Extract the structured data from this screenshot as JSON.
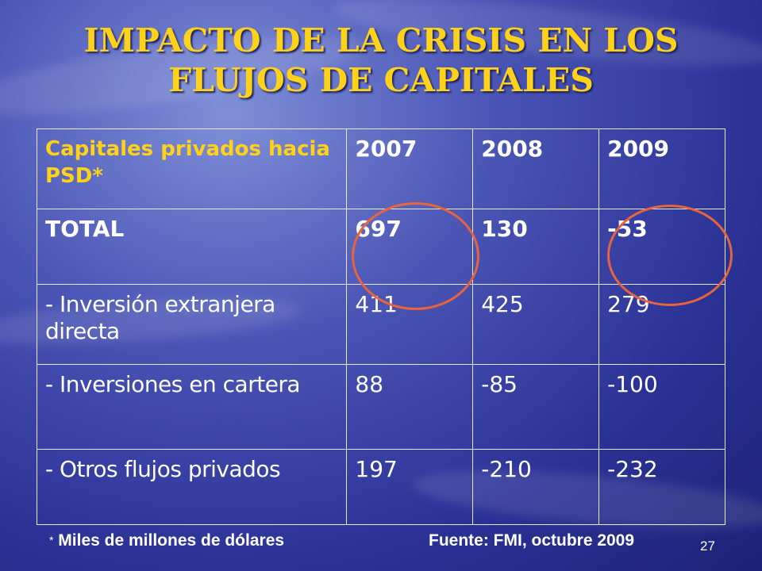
{
  "slide": {
    "title_line1": "IMPACTO DE LA CRISIS EN LOS",
    "title_line2": "FLUJOS DE CAPITALES",
    "page_number": "27"
  },
  "table": {
    "header": {
      "label": "Capitales privados hacia PSD*",
      "years": [
        "2007",
        "2008",
        "2009"
      ]
    },
    "rows": [
      {
        "label": "TOTAL",
        "values": [
          "697",
          "130",
          "-53"
        ]
      },
      {
        "label": "- Inversión extranjera directa",
        "values": [
          "411",
          "425",
          "279"
        ]
      },
      {
        "label": "- Inversiones en cartera",
        "values": [
          "88",
          "-85",
          "-100"
        ]
      },
      {
        "label": "- Otros flujos privados",
        "values": [
          "197",
          "-210",
          "-232"
        ]
      }
    ],
    "highlight_color": "#e8643a"
  },
  "footer": {
    "star": "*",
    "note": " Miles de millones de dólares",
    "source": "Fuente: FMI, octubre 2009"
  },
  "colors": {
    "title": "#ffd21a",
    "background": "#2b3296"
  }
}
